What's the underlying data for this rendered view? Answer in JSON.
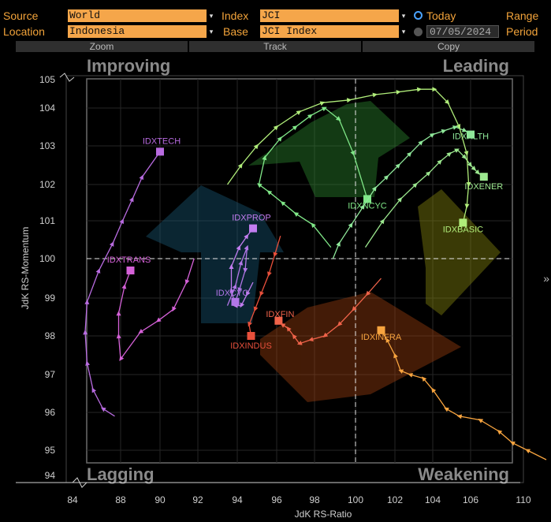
{
  "header": {
    "source_label": "Source",
    "source_value": "World",
    "location_label": "Location",
    "location_value": "Indonesia",
    "index_label": "Index",
    "index_value": "JCI",
    "base_label": "Base",
    "base_value": "JCI Index",
    "today_label": "Today",
    "date_value": "07/05/2024",
    "range_label": "Range",
    "period_label": "Period"
  },
  "toolbar": {
    "zoom_label": "Zoom",
    "track_label": "Track",
    "copy_label": "Copy"
  },
  "side_arrow": "»",
  "chart_data": {
    "type": "scatter",
    "title": "",
    "xlabel": "JdK RS-Ratio",
    "ylabel": "JdK RS-Momentum",
    "xlim": [
      84,
      110
    ],
    "ylim": [
      94,
      105
    ],
    "x_ticks": [
      84,
      88,
      90,
      92,
      94,
      96,
      98,
      100,
      102,
      104,
      106,
      110
    ],
    "y_ticks": [
      94,
      95,
      96,
      97,
      98,
      99,
      100,
      101,
      102,
      103,
      104,
      105
    ],
    "center": [
      100,
      100
    ],
    "quadrants": {
      "top_left": "Improving",
      "top_right": "Leading",
      "bottom_left": "Lagging",
      "bottom_right": "Weakening"
    },
    "series": [
      {
        "name": "IDXTECH",
        "color": "#b86be0",
        "x": [
          87.7,
          87.1,
          86.6,
          86.3,
          86.2,
          86.3,
          86.9,
          87.6,
          88.1,
          88.6,
          89.1,
          90.0
        ],
        "y": [
          95.9,
          96.1,
          96.6,
          97.3,
          98.1,
          98.9,
          99.7,
          100.4,
          101.0,
          101.6,
          102.2,
          102.85
        ]
      },
      {
        "name": "IDXTRANS",
        "color": "#d561d8",
        "x": [
          91.8,
          91.4,
          90.7,
          89.9,
          89.0,
          88.0,
          87.9,
          87.9,
          88.2,
          88.5
        ],
        "y": [
          100.0,
          99.4,
          98.7,
          98.4,
          98.1,
          97.4,
          98.0,
          98.6,
          99.3,
          99.7
        ]
      },
      {
        "name": "IDXPROP",
        "color": "#c27df0",
        "x": [
          94.8,
          94.5,
          94.2,
          93.9,
          93.7,
          93.7,
          94.1,
          94.5,
          94.8
        ],
        "y": [
          99.4,
          99.1,
          98.8,
          98.8,
          99.2,
          99.8,
          100.3,
          100.6,
          100.8
        ]
      },
      {
        "name": "IDXCYC",
        "color": "#b276e8",
        "x": [
          93.5,
          93.9,
          94.2,
          94.5,
          94.4,
          94.1,
          93.9
        ],
        "y": [
          98.8,
          99.3,
          99.9,
          100.3,
          99.7,
          99.2,
          98.9
        ]
      },
      {
        "name": "IDXINDUS",
        "color": "#e8503c",
        "x": [
          96.2,
          95.9,
          95.6,
          95.2,
          94.9,
          94.6,
          94.7
        ],
        "y": [
          100.6,
          100.1,
          99.6,
          99.1,
          98.7,
          98.3,
          98.0
        ]
      },
      {
        "name": "IDXFIN",
        "color": "#f0634a",
        "x": [
          101.3,
          100.6,
          99.9,
          99.2,
          98.5,
          97.8,
          97.2,
          96.9,
          96.6,
          96.3,
          96.1
        ],
        "y": [
          99.5,
          99.1,
          98.7,
          98.3,
          98.0,
          97.9,
          97.8,
          98.0,
          98.2,
          98.3,
          98.4
        ]
      },
      {
        "name": "IDXINFRA",
        "color": "#f7a43f",
        "x": [
          110.0,
          109.0,
          108.2,
          107.5,
          106.5,
          105.4,
          104.7,
          104.0,
          103.5,
          102.8,
          102.3,
          102.0,
          101.6,
          101.3
        ],
        "y": [
          94.75,
          95.0,
          95.2,
          95.5,
          95.8,
          95.9,
          96.1,
          96.6,
          96.9,
          97.0,
          97.1,
          97.5,
          97.9,
          98.15
        ]
      },
      {
        "name": "IDXNCYC",
        "color": "#80e888",
        "x": [
          98.8,
          97.9,
          97.0,
          96.3,
          95.6,
          95.1,
          95.4,
          96.2,
          97.0,
          97.8,
          98.5,
          99.2,
          99.9,
          100.6
        ],
        "y": [
          100.3,
          100.9,
          101.2,
          101.5,
          101.8,
          102.0,
          102.7,
          103.2,
          103.5,
          103.8,
          104.0,
          103.7,
          102.8,
          101.6
        ]
      },
      {
        "name": "IDXHLTH",
        "color": "#8fe89a",
        "x": [
          98.9,
          99.2,
          99.8,
          100.4,
          101.0,
          101.6,
          102.2,
          102.8,
          103.4,
          104.0,
          104.6,
          105.2,
          105.7,
          106.0
        ],
        "y": [
          100.0,
          100.4,
          100.9,
          101.4,
          101.9,
          102.2,
          102.5,
          102.8,
          103.1,
          103.3,
          103.4,
          103.5,
          103.4,
          103.3
        ]
      },
      {
        "name": "IDXENER",
        "color": "#9ce88f",
        "x": [
          100.5,
          101.4,
          102.3,
          103.1,
          103.8,
          104.4,
          104.9,
          105.3,
          105.7,
          106.0,
          106.2,
          106.4,
          106.7
        ],
        "y": [
          100.3,
          101.0,
          101.6,
          102.0,
          102.3,
          102.6,
          102.8,
          102.9,
          102.7,
          102.5,
          102.4,
          102.3,
          102.2
        ]
      },
      {
        "name": "IDXBASIC",
        "color": "#b0ed7a",
        "x": [
          93.5,
          94.2,
          95.0,
          96.0,
          97.2,
          98.4,
          99.7,
          101.0,
          102.2,
          103.3,
          104.1,
          104.8,
          105.4,
          105.8,
          105.9,
          105.8,
          105.6
        ],
        "y": [
          102.0,
          102.5,
          103.0,
          103.5,
          103.9,
          104.2,
          104.3,
          104.5,
          104.6,
          104.7,
          104.7,
          104.2,
          103.5,
          102.8,
          102.0,
          101.4,
          100.95
        ]
      }
    ]
  }
}
